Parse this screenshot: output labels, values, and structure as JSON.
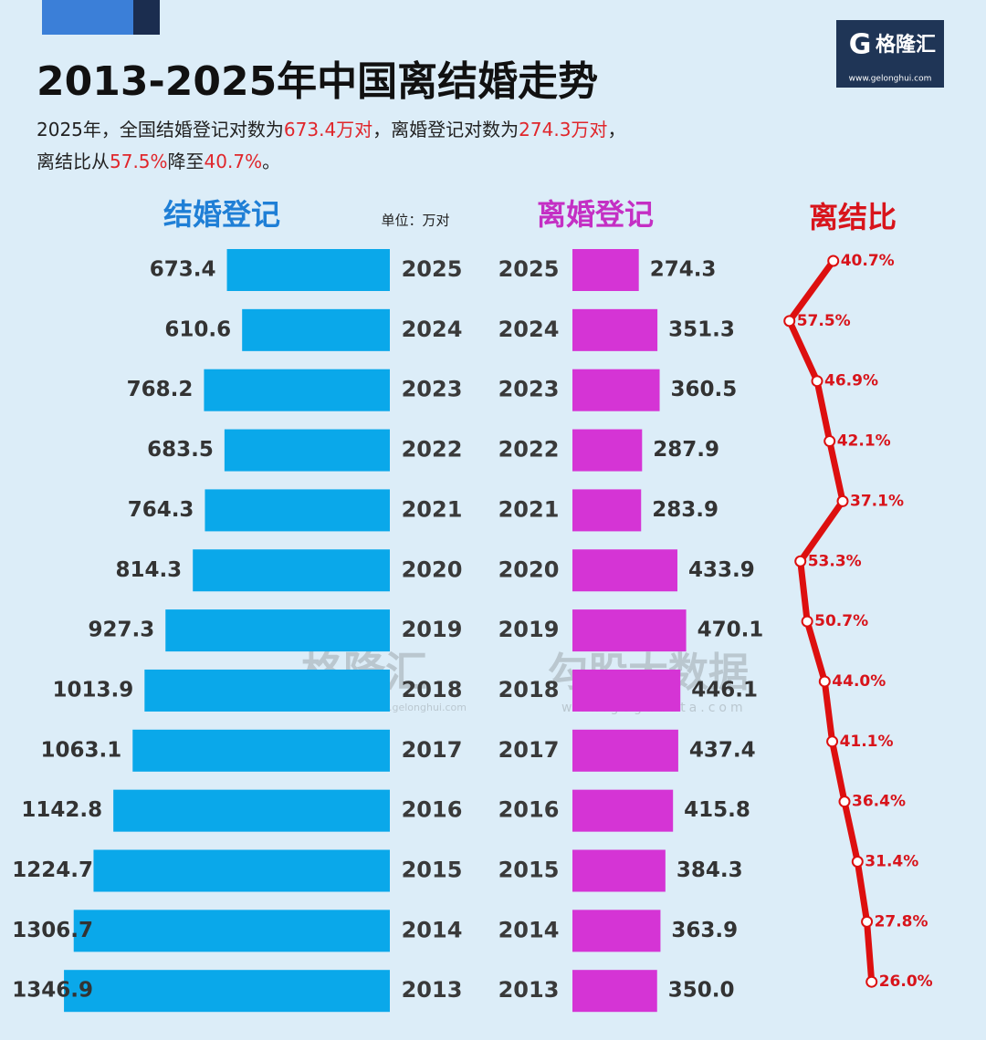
{
  "header": {
    "title": "2013-2025年中国离结婚走势",
    "subtitle_lines": [
      [
        "2025年，全国结婚登记对数为",
        "673.4万对",
        "，离婚登记对数为",
        "274.3万对",
        "，"
      ],
      [
        "离结比从",
        "57.5%",
        "降至",
        "40.7%",
        "。"
      ]
    ]
  },
  "logo": {
    "mark": "G",
    "name": "格隆汇",
    "url": "www.gelonghui.com"
  },
  "watermark": {
    "brand": "格隆汇",
    "brand_url": "www.gelonghui.com",
    "partner": "勾股大数据",
    "partner_url": "www.gogudata.com"
  },
  "chart_data": [
    {
      "type": "bar",
      "orientation": "horizontal",
      "direction": "left",
      "title": "结婚登记",
      "unit": "单位：万对",
      "title_color": "#1f7fd6",
      "color": "#0aa8ea",
      "categories": [
        "2025",
        "2024",
        "2023",
        "2022",
        "2021",
        "2020",
        "2019",
        "2018",
        "2017",
        "2016",
        "2015",
        "2014",
        "2013"
      ],
      "values": [
        673.4,
        610.6,
        768.2,
        683.5,
        764.3,
        814.3,
        927.3,
        1013.9,
        1063.1,
        1142.8,
        1224.7,
        1306.7,
        1346.9
      ]
    },
    {
      "type": "bar",
      "orientation": "horizontal",
      "direction": "right",
      "title": "离婚登记",
      "title_color": "#c42fc4",
      "color": "#d534d5",
      "categories": [
        "2025",
        "2024",
        "2023",
        "2022",
        "2021",
        "2020",
        "2019",
        "2018",
        "2017",
        "2016",
        "2015",
        "2014",
        "2013"
      ],
      "values": [
        274.3,
        351.3,
        360.5,
        287.9,
        283.9,
        433.9,
        470.1,
        446.1,
        437.4,
        415.8,
        384.3,
        363.9,
        350.0
      ],
      "value_labels": [
        "274.3",
        "351.3",
        "360.5",
        "287.9",
        "283.9",
        "433.9",
        "470.1",
        "446.1",
        "437.4",
        "415.8",
        "384.3",
        "363.9",
        "350.0"
      ]
    },
    {
      "type": "line",
      "title": "离结比",
      "title_color": "#d8141b",
      "color": "#dd0f0f",
      "categories": [
        "2025",
        "2024",
        "2023",
        "2022",
        "2021",
        "2020",
        "2019",
        "2018",
        "2017",
        "2016",
        "2015",
        "2014",
        "2013"
      ],
      "values": [
        40.7,
        57.5,
        46.9,
        42.1,
        37.1,
        53.3,
        50.7,
        44.0,
        41.1,
        36.4,
        31.4,
        27.8,
        26.0
      ],
      "value_labels": [
        "40.7%",
        "57.5%",
        "46.9%",
        "42.1%",
        "37.1%",
        "53.3%",
        "50.7%",
        "44.0%",
        "41.1%",
        "36.4%",
        "31.4%",
        "27.8%",
        "26.0%"
      ]
    }
  ]
}
